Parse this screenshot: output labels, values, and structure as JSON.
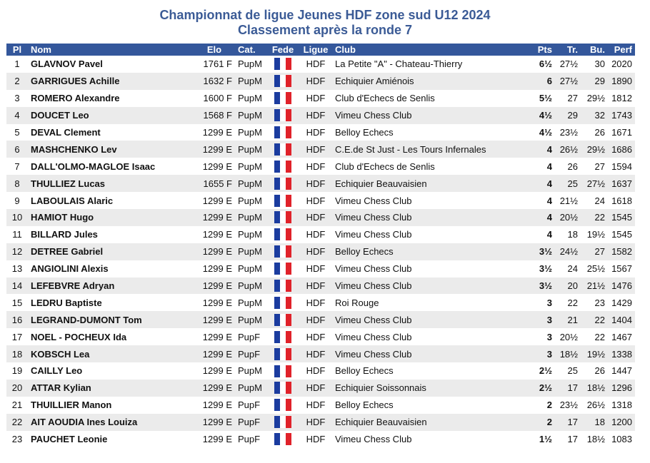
{
  "title_line1": "Championnat de ligue Jeunes HDF zone sud U12 2024",
  "title_line2": "Classement après la ronde 7",
  "headers": {
    "pl": "Pl",
    "nom": "Nom",
    "elo": "Elo",
    "cat": "Cat.",
    "fede": "Fede",
    "ligue": "Ligue",
    "club": "Club",
    "pts": "Pts",
    "tr": "Tr.",
    "bu": "Bu.",
    "perf": "Perf"
  },
  "flag_icon": "france-flag-icon",
  "rows": [
    {
      "pl": "1",
      "nom": "GLAVNOV Pavel",
      "elo": "1761 F",
      "cat": "PupM",
      "ligue": "HDF",
      "club": "La Petite \"A\" - Chateau-Thierry",
      "pts": "6½",
      "tr": "27½",
      "bu": "30",
      "perf": "2020"
    },
    {
      "pl": "2",
      "nom": "GARRIGUES Achille",
      "elo": "1632 F",
      "cat": "PupM",
      "ligue": "HDF",
      "club": "Echiquier Amiénois",
      "pts": "6",
      "tr": "27½",
      "bu": "29",
      "perf": "1890"
    },
    {
      "pl": "3",
      "nom": "ROMERO Alexandre",
      "elo": "1600 F",
      "cat": "PupM",
      "ligue": "HDF",
      "club": "Club d'Echecs de Senlis",
      "pts": "5½",
      "tr": "27",
      "bu": "29½",
      "perf": "1812"
    },
    {
      "pl": "4",
      "nom": "DOUCET Leo",
      "elo": "1568 F",
      "cat": "PupM",
      "ligue": "HDF",
      "club": "Vimeu Chess Club",
      "pts": "4½",
      "tr": "29",
      "bu": "32",
      "perf": "1743"
    },
    {
      "pl": "5",
      "nom": "DEVAL Clement",
      "elo": "1299 E",
      "cat": "PupM",
      "ligue": "HDF",
      "club": "Belloy Echecs",
      "pts": "4½",
      "tr": "23½",
      "bu": "26",
      "perf": "1671"
    },
    {
      "pl": "6",
      "nom": "MASHCHENKO Lev",
      "elo": "1299 E",
      "cat": "PupM",
      "ligue": "HDF",
      "club": "C.E.de St Just - Les Tours Infernales",
      "pts": "4",
      "tr": "26½",
      "bu": "29½",
      "perf": "1686"
    },
    {
      "pl": "7",
      "nom": "DALL'OLMO-MAGLOE Isaac",
      "elo": "1299 E",
      "cat": "PupM",
      "ligue": "HDF",
      "club": "Club d'Echecs de Senlis",
      "pts": "4",
      "tr": "26",
      "bu": "27",
      "perf": "1594"
    },
    {
      "pl": "8",
      "nom": "THULLIEZ Lucas",
      "elo": "1655 F",
      "cat": "PupM",
      "ligue": "HDF",
      "club": "Echiquier Beauvaisien",
      "pts": "4",
      "tr": "25",
      "bu": "27½",
      "perf": "1637"
    },
    {
      "pl": "9",
      "nom": "LABOULAIS Alaric",
      "elo": "1299 E",
      "cat": "PupM",
      "ligue": "HDF",
      "club": "Vimeu Chess Club",
      "pts": "4",
      "tr": "21½",
      "bu": "24",
      "perf": "1618"
    },
    {
      "pl": "10",
      "nom": "HAMIOT Hugo",
      "elo": "1299 E",
      "cat": "PupM",
      "ligue": "HDF",
      "club": "Vimeu Chess Club",
      "pts": "4",
      "tr": "20½",
      "bu": "22",
      "perf": "1545"
    },
    {
      "pl": "11",
      "nom": "BILLARD Jules",
      "elo": "1299 E",
      "cat": "PupM",
      "ligue": "HDF",
      "club": "Vimeu Chess Club",
      "pts": "4",
      "tr": "18",
      "bu": "19½",
      "perf": "1545"
    },
    {
      "pl": "12",
      "nom": "DETREE Gabriel",
      "elo": "1299 E",
      "cat": "PupM",
      "ligue": "HDF",
      "club": "Belloy Echecs",
      "pts": "3½",
      "tr": "24½",
      "bu": "27",
      "perf": "1582"
    },
    {
      "pl": "13",
      "nom": "ANGIOLINI Alexis",
      "elo": "1299 E",
      "cat": "PupM",
      "ligue": "HDF",
      "club": "Vimeu Chess Club",
      "pts": "3½",
      "tr": "24",
      "bu": "25½",
      "perf": "1567"
    },
    {
      "pl": "14",
      "nom": "LEFEBVRE Adryan",
      "elo": "1299 E",
      "cat": "PupM",
      "ligue": "HDF",
      "club": "Vimeu Chess Club",
      "pts": "3½",
      "tr": "20",
      "bu": "21½",
      "perf": "1476"
    },
    {
      "pl": "15",
      "nom": "LEDRU Baptiste",
      "elo": "1299 E",
      "cat": "PupM",
      "ligue": "HDF",
      "club": "Roi Rouge",
      "pts": "3",
      "tr": "22",
      "bu": "23",
      "perf": "1429"
    },
    {
      "pl": "16",
      "nom": "LEGRAND-DUMONT Tom",
      "elo": "1299 E",
      "cat": "PupM",
      "ligue": "HDF",
      "club": "Vimeu Chess Club",
      "pts": "3",
      "tr": "21",
      "bu": "22",
      "perf": "1404"
    },
    {
      "pl": "17",
      "nom": "NOEL - POCHEUX Ida",
      "elo": "1299 E",
      "cat": "PupF",
      "ligue": "HDF",
      "club": "Vimeu Chess Club",
      "pts": "3",
      "tr": "20½",
      "bu": "22",
      "perf": "1467"
    },
    {
      "pl": "18",
      "nom": "KOBSCH Lea",
      "elo": "1299 E",
      "cat": "PupF",
      "ligue": "HDF",
      "club": "Vimeu Chess Club",
      "pts": "3",
      "tr": "18½",
      "bu": "19½",
      "perf": "1338"
    },
    {
      "pl": "19",
      "nom": "CAILLY Leo",
      "elo": "1299 E",
      "cat": "PupM",
      "ligue": "HDF",
      "club": "Belloy Echecs",
      "pts": "2½",
      "tr": "25",
      "bu": "26",
      "perf": "1447"
    },
    {
      "pl": "20",
      "nom": "ATTAR Kylian",
      "elo": "1299 E",
      "cat": "PupM",
      "ligue": "HDF",
      "club": "Echiquier Soissonnais",
      "pts": "2½",
      "tr": "17",
      "bu": "18½",
      "perf": "1296"
    },
    {
      "pl": "21",
      "nom": "THUILLIER Manon",
      "elo": "1299 E",
      "cat": "PupF",
      "ligue": "HDF",
      "club": "Belloy Echecs",
      "pts": "2",
      "tr": "23½",
      "bu": "26½",
      "perf": "1318"
    },
    {
      "pl": "22",
      "nom": "AIT AOUDIA Ines Louiza",
      "elo": "1299 E",
      "cat": "PupF",
      "ligue": "HDF",
      "club": "Echiquier Beauvaisien",
      "pts": "2",
      "tr": "17",
      "bu": "18",
      "perf": "1200"
    },
    {
      "pl": "23",
      "nom": "PAUCHET Leonie",
      "elo": "1299 E",
      "cat": "PupF",
      "ligue": "HDF",
      "club": "Vimeu Chess Club",
      "pts": "1½",
      "tr": "17",
      "bu": "18½",
      "perf": "1083"
    }
  ]
}
